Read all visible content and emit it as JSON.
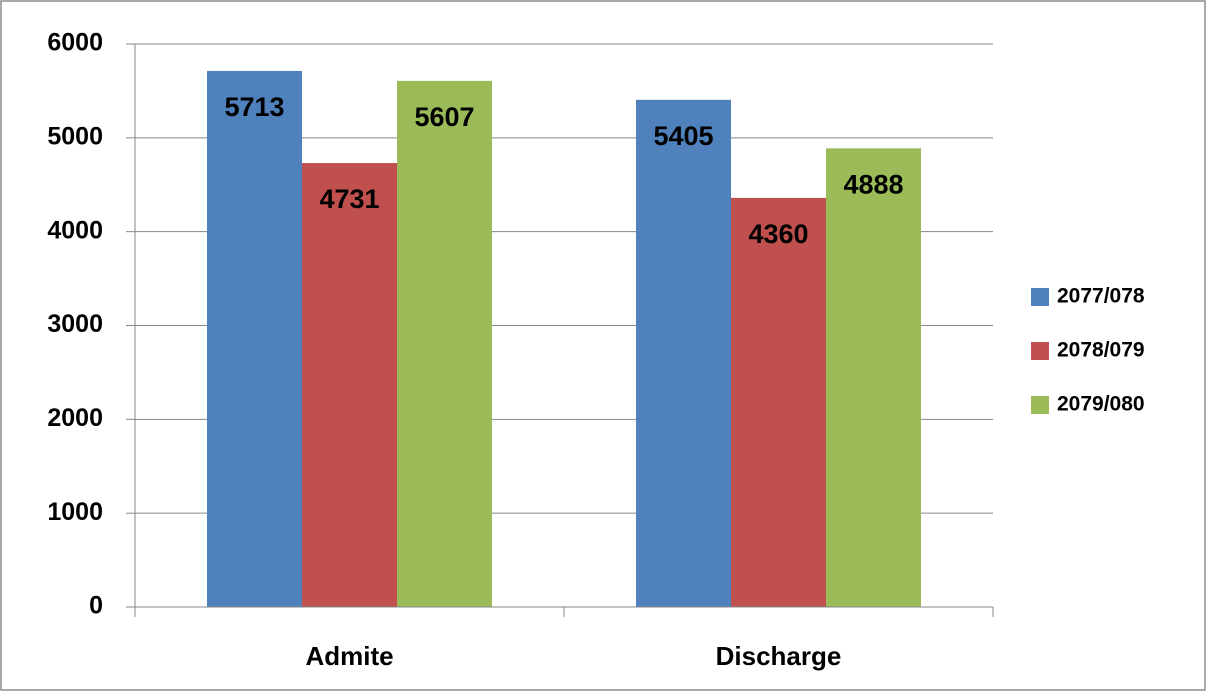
{
  "chart_data": {
    "type": "bar",
    "categories": [
      "Admite",
      "Discharge"
    ],
    "series": [
      {
        "name": "2077/078",
        "color": "#4f81bd",
        "values": [
          5713,
          5405
        ]
      },
      {
        "name": "2078/079",
        "color": "#c0504d",
        "values": [
          4731,
          4360
        ]
      },
      {
        "name": "2079/080",
        "color": "#9bbb59",
        "values": [
          5607,
          4888
        ]
      }
    ],
    "ylim": [
      0,
      6000
    ],
    "yticks": [
      0,
      1000,
      2000,
      3000,
      4000,
      5000,
      6000
    ],
    "grid": true,
    "legend": "right"
  }
}
